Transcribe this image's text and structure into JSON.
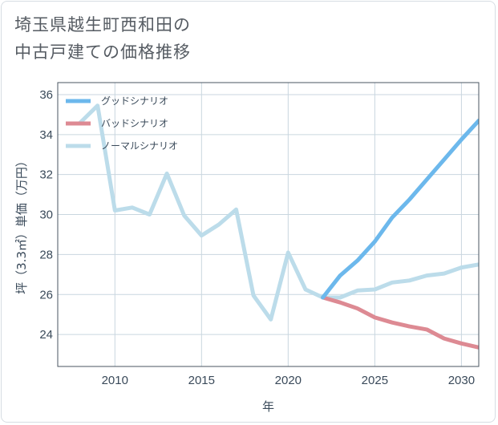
{
  "title": {
    "line1": "埼玉県越生町西和田の",
    "line2": "中古戸建ての価格推移"
  },
  "colors": {
    "good": "#6cb8ec",
    "bad": "#dd8a93",
    "normal": "#bcdcea",
    "grid": "#c9d6df",
    "axis": "#4a5560"
  },
  "chart_data": {
    "type": "line",
    "title": "埼玉県越生町西和田の中古戸建ての価格推移",
    "xlabel": "年",
    "ylabel": "坪（3.3㎡）単価（万円）",
    "xlim": [
      2006.7,
      2031
    ],
    "ylim": [
      22.4,
      36.6
    ],
    "xticks": [
      2010,
      2015,
      2020,
      2025,
      2030
    ],
    "yticks": [
      24,
      26,
      28,
      30,
      32,
      34,
      36
    ],
    "legend_position": "top-left",
    "series": [
      {
        "name": "グッドシナリオ",
        "key": "good",
        "x": [
          2022,
          2023,
          2024,
          2025,
          2026,
          2027,
          2028,
          2029,
          2030,
          2031
        ],
        "values": [
          25.85,
          26.95,
          27.7,
          28.65,
          29.85,
          30.75,
          31.75,
          32.75,
          33.75,
          34.7
        ]
      },
      {
        "name": "バッドシナリオ",
        "key": "bad",
        "x": [
          2022,
          2023,
          2024,
          2025,
          2026,
          2027,
          2028,
          2029,
          2030,
          2031
        ],
        "values": [
          25.85,
          25.6,
          25.3,
          24.85,
          24.6,
          24.4,
          24.25,
          23.8,
          23.55,
          23.35
        ]
      },
      {
        "name": "ノーマルシナリオ",
        "key": "normal",
        "x": [
          2008,
          2009,
          2010,
          2011,
          2012,
          2013,
          2014,
          2015,
          2016,
          2017,
          2018,
          2019,
          2020,
          2021,
          2022,
          2023,
          2024,
          2025,
          2026,
          2027,
          2028,
          2029,
          2030,
          2031
        ],
        "values": [
          34.6,
          35.45,
          30.2,
          30.35,
          30.0,
          32.05,
          29.95,
          28.95,
          29.5,
          30.25,
          25.95,
          24.75,
          28.1,
          26.25,
          25.85,
          25.85,
          26.2,
          26.25,
          26.6,
          26.7,
          26.95,
          27.05,
          27.35,
          27.5
        ]
      }
    ]
  }
}
